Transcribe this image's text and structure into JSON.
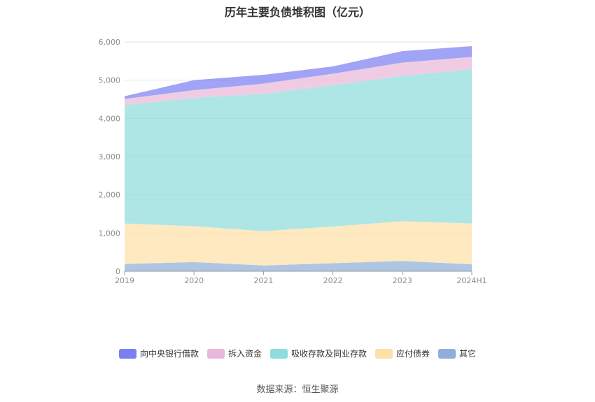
{
  "chart_data": {
    "type": "area",
    "stacked": true,
    "title": "历年主要负债堆积图（亿元）",
    "categories": [
      "2019",
      "2020",
      "2021",
      "2022",
      "2023",
      "2024H1"
    ],
    "ylim": [
      0,
      6000
    ],
    "yticks": [
      0,
      1000,
      2000,
      3000,
      4000,
      5000,
      6000
    ],
    "ytick_labels": [
      "0",
      "1,000",
      "2,000",
      "3,000",
      "4,000",
      "5,000",
      "6,000"
    ],
    "grid": true,
    "legend_position": "bottom",
    "series": [
      {
        "name": "其它",
        "color": "#8fafda",
        "values": [
          190,
          240,
          150,
          210,
          270,
          180
        ]
      },
      {
        "name": "应付债券",
        "color": "#fde0a8",
        "values": [
          1060,
          940,
          900,
          960,
          1040,
          1070
        ]
      },
      {
        "name": "吸收存款及同业存款",
        "color": "#8fdcdc",
        "values": [
          3100,
          3360,
          3590,
          3700,
          3800,
          4040
        ]
      },
      {
        "name": "拆入资金",
        "color": "#eab8da",
        "values": [
          160,
          200,
          270,
          300,
          350,
          320
        ]
      },
      {
        "name": "向中央银行借款",
        "color": "#7b7ff2",
        "values": [
          70,
          260,
          230,
          190,
          300,
          280
        ]
      }
    ],
    "legend_order": [
      "向中央银行借款",
      "拆入资金",
      "吸收存款及同业存款",
      "应付债券",
      "其它"
    ]
  },
  "footer": {
    "source": "数据来源：恒生聚源"
  }
}
